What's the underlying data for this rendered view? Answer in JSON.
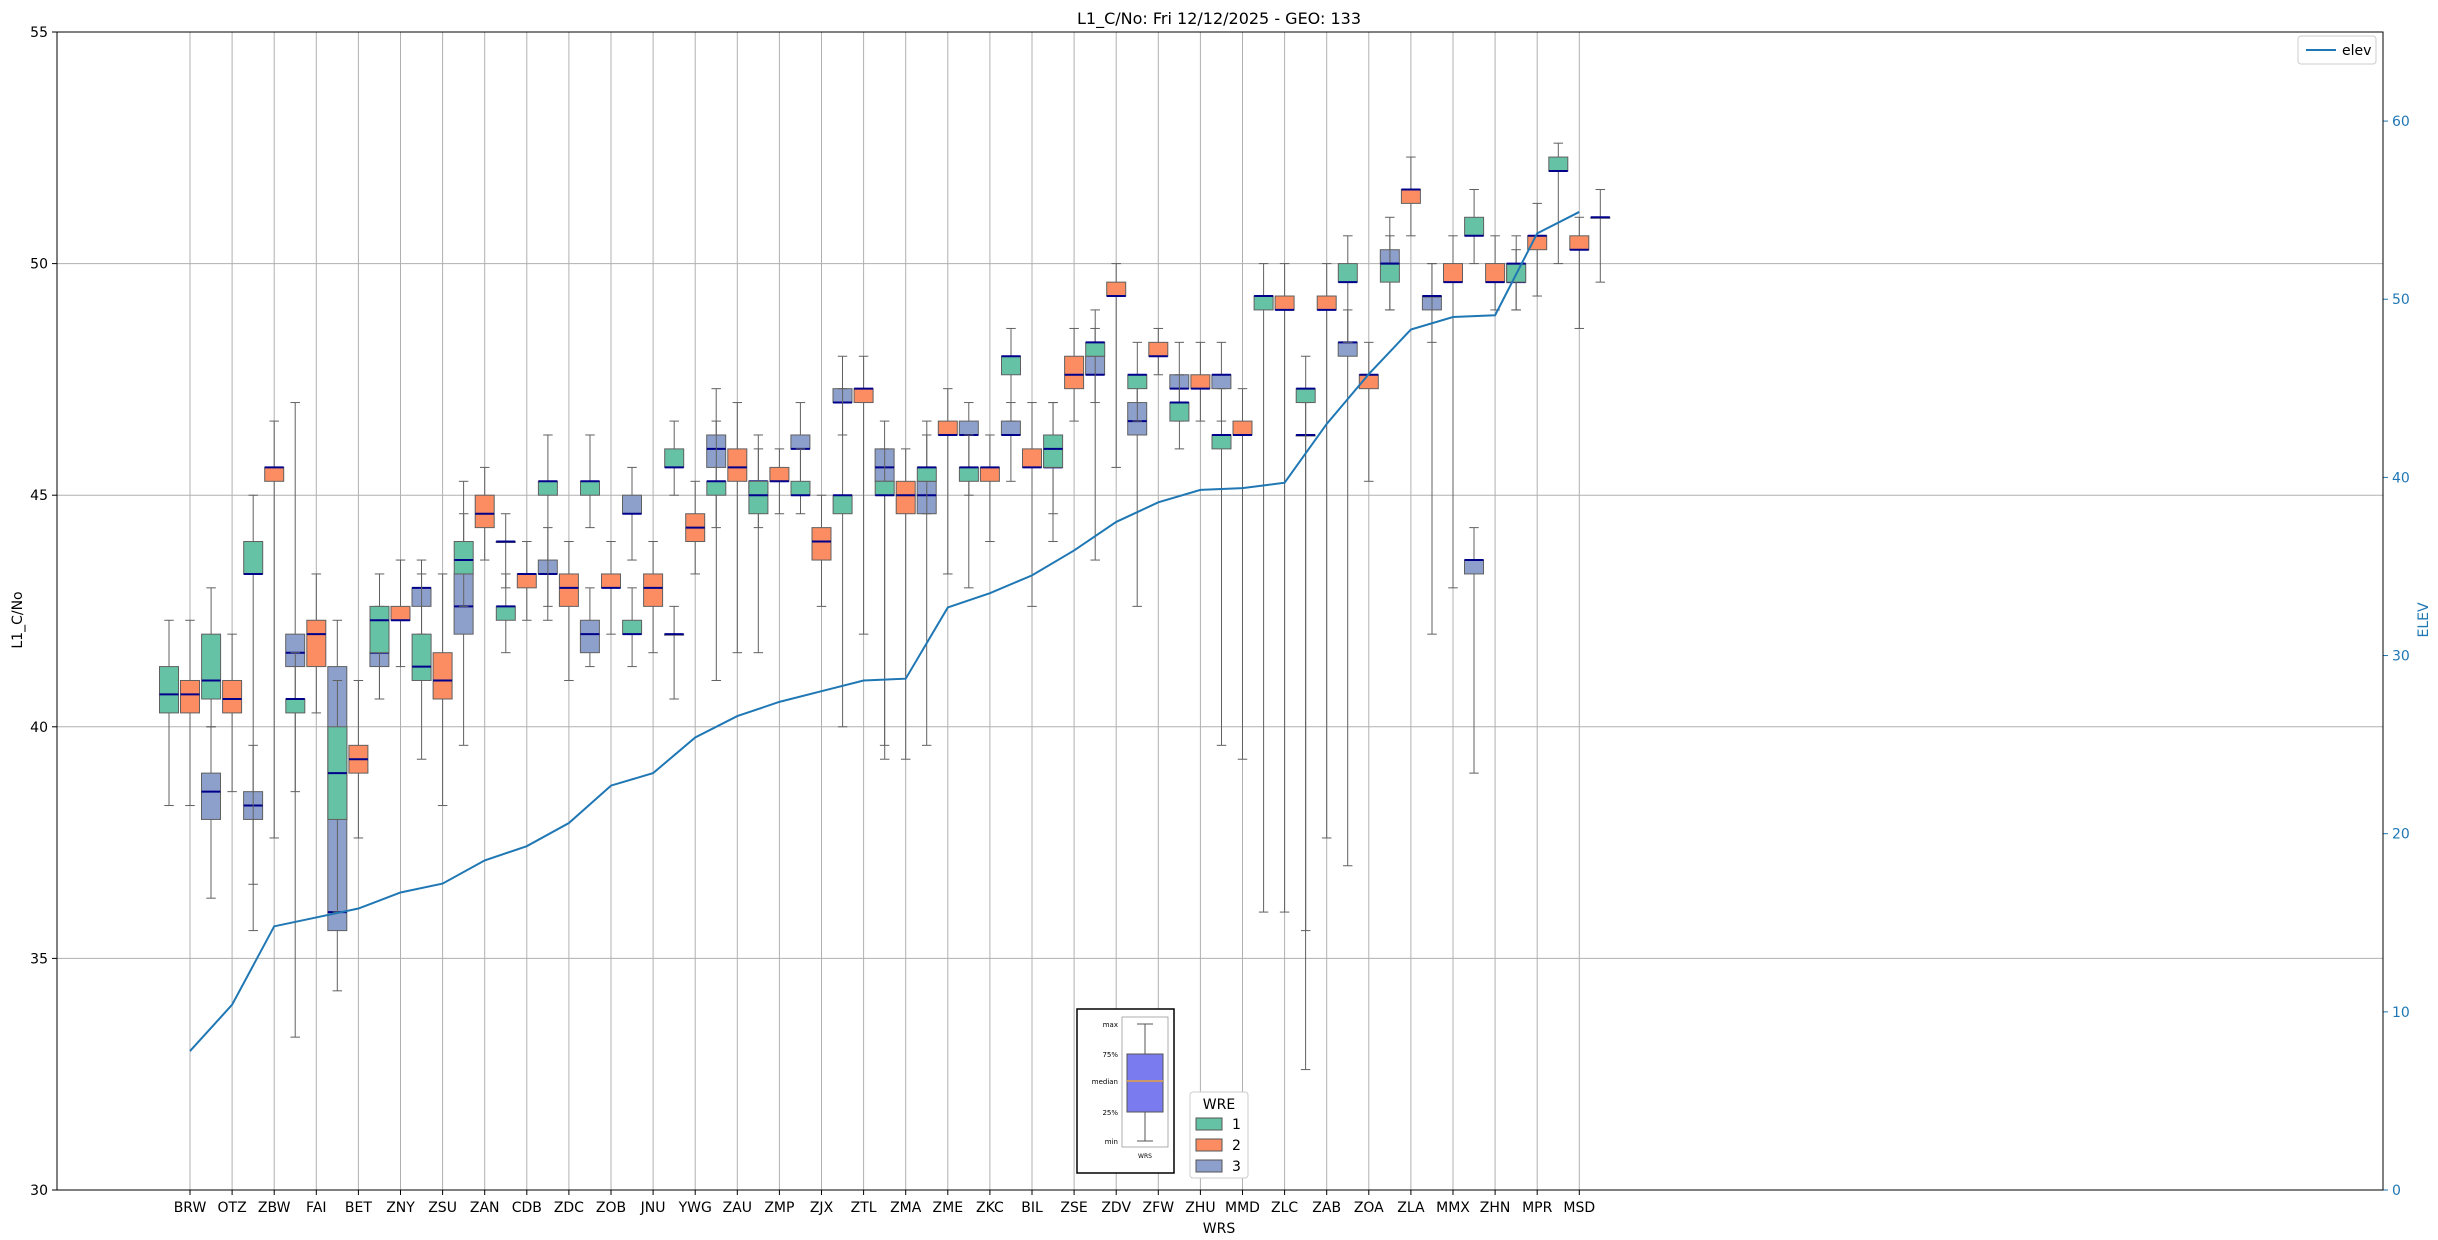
{
  "chart_data": {
    "type": "box",
    "title": "L1_C/No: Fri 12/12/2025 - GEO: 133",
    "xlabel": "WRS",
    "ylabel": "L1_C/No",
    "ylabel_right": "ELEV",
    "ylim": [
      30,
      55
    ],
    "ylim_right": [
      0,
      65
    ],
    "yticks": [
      30,
      35,
      40,
      45,
      50,
      55
    ],
    "yticks_right": [
      0,
      10,
      20,
      30,
      40,
      50,
      60
    ],
    "grid": true,
    "legend_line": "elev",
    "legend_title": "WRE",
    "series": [
      {
        "name": "1",
        "color": "#66c2a5"
      },
      {
        "name": "2",
        "color": "#fc8d62"
      },
      {
        "name": "3",
        "color": "#8da0cb"
      }
    ],
    "median_color": "#00008b",
    "elev_color": "#1f77b4",
    "key_labels": [
      "max",
      "75%",
      "median",
      "25%",
      "min",
      "WRS"
    ],
    "categories": [
      "BRW",
      "OTZ",
      "ZBW",
      "FAI",
      "BET",
      "ZNY",
      "ZSU",
      "ZAN",
      "CDB",
      "ZDC",
      "ZOB",
      "JNU",
      "YWG",
      "ZAU",
      "ZMP",
      "ZJX",
      "ZTL",
      "ZMA",
      "ZME",
      "ZKC",
      "BIL",
      "ZSE",
      "ZDV",
      "ZFW",
      "ZHU",
      "MMD",
      "ZLC",
      "ZAB",
      "ZOA",
      "ZLA",
      "MMX",
      "ZHN",
      "MPR",
      "MSD"
    ],
    "elev": [
      7.8,
      10.4,
      14.8,
      15.3,
      15.8,
      16.7,
      17.2,
      18.5,
      19.3,
      20.6,
      22.7,
      23.4,
      25.4,
      26.6,
      27.4,
      28.0,
      28.6,
      28.7,
      32.7,
      33.5,
      34.5,
      35.9,
      37.5,
      38.6,
      39.3,
      39.4,
      39.7,
      43.0,
      45.8,
      48.3,
      49.0,
      49.1,
      53.7,
      54.9
    ],
    "boxes": {
      "BRW": [
        [
          38.3,
          40.3,
          40.7,
          41.3,
          42.3
        ],
        [
          38.3,
          40.3,
          40.7,
          41.0,
          42.3
        ],
        [
          36.3,
          38.0,
          38.6,
          39.0,
          40.0
        ]
      ],
      "OTZ": [
        [
          40.0,
          40.6,
          41.0,
          42.0,
          43.0
        ],
        [
          38.6,
          40.3,
          40.6,
          41.0,
          42.0
        ],
        [
          36.6,
          38.0,
          38.3,
          38.6,
          39.6
        ]
      ],
      "ZBW": [
        [
          35.6,
          43.3,
          43.3,
          44.0,
          45.0
        ],
        [
          37.6,
          45.3,
          45.6,
          45.6,
          46.6
        ],
        [
          33.3,
          41.3,
          41.6,
          42.0,
          47.0
        ]
      ],
      "FAI": [
        [
          38.6,
          40.3,
          40.6,
          40.6,
          41.6
        ],
        [
          40.3,
          41.3,
          42.0,
          42.3,
          43.3
        ],
        [
          34.3,
          35.6,
          36.0,
          41.3,
          42.3
        ]
      ],
      "BET": [
        [
          36.0,
          38.0,
          39.0,
          40.0,
          41.0
        ],
        [
          37.6,
          39.0,
          39.3,
          39.6,
          41.0
        ],
        [
          40.6,
          41.3,
          41.6,
          41.6,
          42.6
        ]
      ],
      "ZNY": [
        [
          40.6,
          41.6,
          42.3,
          42.6,
          43.3
        ],
        [
          41.3,
          42.3,
          42.3,
          42.6,
          43.6
        ],
        [
          42.0,
          42.6,
          43.0,
          43.0,
          43.6
        ]
      ],
      "ZSU": [
        [
          39.3,
          41.0,
          41.3,
          42.0,
          43.3
        ],
        [
          38.3,
          40.6,
          41.0,
          41.6,
          43.3
        ],
        [
          39.6,
          42.0,
          42.6,
          43.3,
          45.3
        ]
      ],
      "ZAN": [
        [
          42.6,
          43.3,
          43.6,
          44.0,
          44.6
        ],
        [
          43.6,
          44.3,
          44.6,
          45.0,
          45.6
        ],
        [
          43.0,
          44.0,
          44.0,
          44.0,
          44.6
        ]
      ],
      "CDB": [
        [
          41.6,
          42.3,
          42.6,
          42.6,
          43.3
        ],
        [
          42.3,
          43.0,
          43.3,
          43.3,
          44.0
        ],
        [
          42.3,
          43.3,
          43.3,
          43.6,
          44.3
        ]
      ],
      "ZDC": [
        [
          42.6,
          45.0,
          45.3,
          45.3,
          46.3
        ],
        [
          41.0,
          42.6,
          43.0,
          43.3,
          44.0
        ],
        [
          41.3,
          41.6,
          42.0,
          42.3,
          43.0
        ]
      ],
      "ZOB": [
        [
          44.3,
          45.0,
          45.3,
          45.3,
          46.3
        ],
        [
          42.0,
          43.0,
          43.0,
          43.3,
          44.0
        ],
        [
          43.6,
          44.6,
          44.6,
          45.0,
          45.6
        ]
      ],
      "JNU": [
        [
          41.3,
          42.0,
          42.0,
          42.3,
          43.0
        ],
        [
          41.6,
          42.6,
          43.0,
          43.3,
          44.0
        ],
        [
          40.6,
          42.0,
          42.0,
          42.0,
          42.6
        ]
      ],
      "YWG": [
        [
          45.0,
          45.6,
          45.6,
          46.0,
          46.6
        ],
        [
          43.3,
          44.0,
          44.3,
          44.6,
          45.3
        ],
        [
          44.3,
          45.6,
          46.0,
          46.3,
          47.3
        ]
      ],
      "ZAU": [
        [
          41.0,
          45.0,
          45.3,
          45.3,
          46.6
        ],
        [
          41.6,
          45.3,
          45.6,
          46.0,
          47.0
        ],
        [
          41.6,
          45.0,
          45.3,
          45.3,
          46.3
        ]
      ],
      "ZMP": [
        [
          44.3,
          44.6,
          45.0,
          45.3,
          46.0
        ],
        [
          44.6,
          45.3,
          45.3,
          45.6,
          46.0
        ],
        [
          45.0,
          46.0,
          46.0,
          46.3,
          47.0
        ]
      ],
      "ZJX": [
        [
          44.6,
          45.0,
          45.0,
          45.3,
          46.0
        ],
        [
          42.6,
          43.6,
          44.0,
          44.3,
          45.0
        ],
        [
          46.3,
          47.0,
          47.0,
          47.3,
          48.0
        ]
      ],
      "ZTL": [
        [
          40.0,
          44.6,
          45.0,
          45.0,
          47.3
        ],
        [
          42.0,
          47.0,
          47.3,
          47.3,
          48.0
        ],
        [
          39.6,
          45.3,
          45.6,
          46.0,
          46.6
        ]
      ],
      "ZMA": [
        [
          39.3,
          45.0,
          45.0,
          45.3,
          46.0
        ],
        [
          39.3,
          44.6,
          45.0,
          45.3,
          46.0
        ],
        [
          39.6,
          44.6,
          45.0,
          45.3,
          46.3
        ]
      ],
      "ZME": [
        [
          44.6,
          45.3,
          45.6,
          45.6,
          46.6
        ],
        [
          43.3,
          46.3,
          46.3,
          46.6,
          47.3
        ],
        [
          43.0,
          46.3,
          46.3,
          46.6,
          47.0
        ]
      ],
      "ZKC": [
        [
          45.0,
          45.3,
          45.6,
          45.6,
          46.3
        ],
        [
          44.0,
          45.3,
          45.6,
          45.6,
          46.3
        ],
        [
          45.3,
          46.3,
          46.3,
          46.6,
          47.0
        ]
      ],
      "BIL": [
        [
          46.6,
          47.6,
          48.0,
          48.0,
          48.6
        ],
        [
          42.6,
          45.6,
          45.6,
          46.0,
          47.0
        ],
        [
          44.0,
          45.6,
          45.6,
          46.0,
          47.0
        ]
      ],
      "ZSE": [
        [
          44.6,
          45.6,
          46.0,
          46.3,
          47.0
        ],
        [
          46.6,
          47.3,
          47.6,
          48.0,
          48.6
        ],
        [
          47.0,
          47.6,
          47.6,
          48.0,
          48.6
        ]
      ],
      "ZDV": [
        [
          43.6,
          48.0,
          48.3,
          48.3,
          49.0
        ],
        [
          45.6,
          49.3,
          49.3,
          49.6,
          50.0
        ],
        [
          42.6,
          46.3,
          46.6,
          47.0,
          47.6
        ]
      ],
      "ZFW": [
        [
          46.6,
          47.3,
          47.6,
          47.6,
          48.3
        ],
        [
          47.6,
          48.0,
          48.0,
          48.3,
          48.6
        ],
        [
          46.6,
          47.3,
          47.3,
          47.6,
          48.3
        ]
      ],
      "ZHU": [
        [
          46.0,
          46.6,
          47.0,
          47.0,
          47.6
        ],
        [
          46.6,
          47.3,
          47.3,
          47.6,
          48.3
        ],
        [
          46.6,
          47.3,
          47.6,
          47.6,
          48.3
        ]
      ],
      "MMD": [
        [
          39.6,
          46.0,
          46.3,
          46.3,
          47.3
        ],
        [
          39.3,
          46.3,
          46.3,
          46.6,
          47.3
        ],
        null
      ],
      "ZLC": [
        [
          36.0,
          49.0,
          49.3,
          49.3,
          50.0
        ],
        [
          36.0,
          49.0,
          49.0,
          49.3,
          50.0
        ],
        [
          32.6,
          46.3,
          46.3,
          46.3,
          47.0
        ]
      ],
      "ZAB": [
        [
          35.6,
          47.0,
          47.3,
          47.3,
          48.0
        ],
        [
          37.6,
          49.0,
          49.0,
          49.3,
          50.0
        ],
        [
          37.0,
          48.0,
          48.3,
          48.3,
          49.0
        ]
      ],
      "ZOA": [
        [
          48.3,
          49.6,
          49.6,
          50.0,
          50.6
        ],
        [
          45.3,
          47.3,
          47.6,
          47.6,
          48.3
        ],
        [
          49.0,
          50.0,
          50.0,
          50.3,
          51.0
        ]
      ],
      "ZLA": [
        [
          49.0,
          49.6,
          50.0,
          50.0,
          50.6
        ],
        [
          50.6,
          51.3,
          51.6,
          51.6,
          52.3
        ],
        [
          48.3,
          49.0,
          49.3,
          49.3,
          50.0
        ]
      ],
      "MMX": [
        [
          42.0,
          49.3,
          49.3,
          49.3,
          50.0
        ],
        [
          43.0,
          49.6,
          49.6,
          50.0,
          50.6
        ],
        [
          39.0,
          43.3,
          43.6,
          43.6,
          44.3
        ]
      ],
      "ZHN": [
        [
          50.0,
          50.6,
          50.6,
          51.0,
          51.6
        ],
        [
          49.0,
          49.6,
          49.6,
          50.0,
          50.6
        ],
        [
          49.0,
          49.6,
          49.6,
          50.0,
          50.3
        ]
      ],
      "MPR": [
        [
          49.0,
          49.6,
          50.0,
          50.0,
          50.6
        ],
        [
          49.3,
          50.3,
          50.6,
          50.6,
          51.3
        ],
        null
      ],
      "MSD": [
        [
          50.0,
          52.0,
          52.0,
          52.3,
          52.6
        ],
        [
          48.6,
          50.3,
          50.3,
          50.6,
          51.0
        ],
        [
          49.6,
          51.0,
          51.0,
          51.0,
          51.6
        ]
      ]
    }
  }
}
